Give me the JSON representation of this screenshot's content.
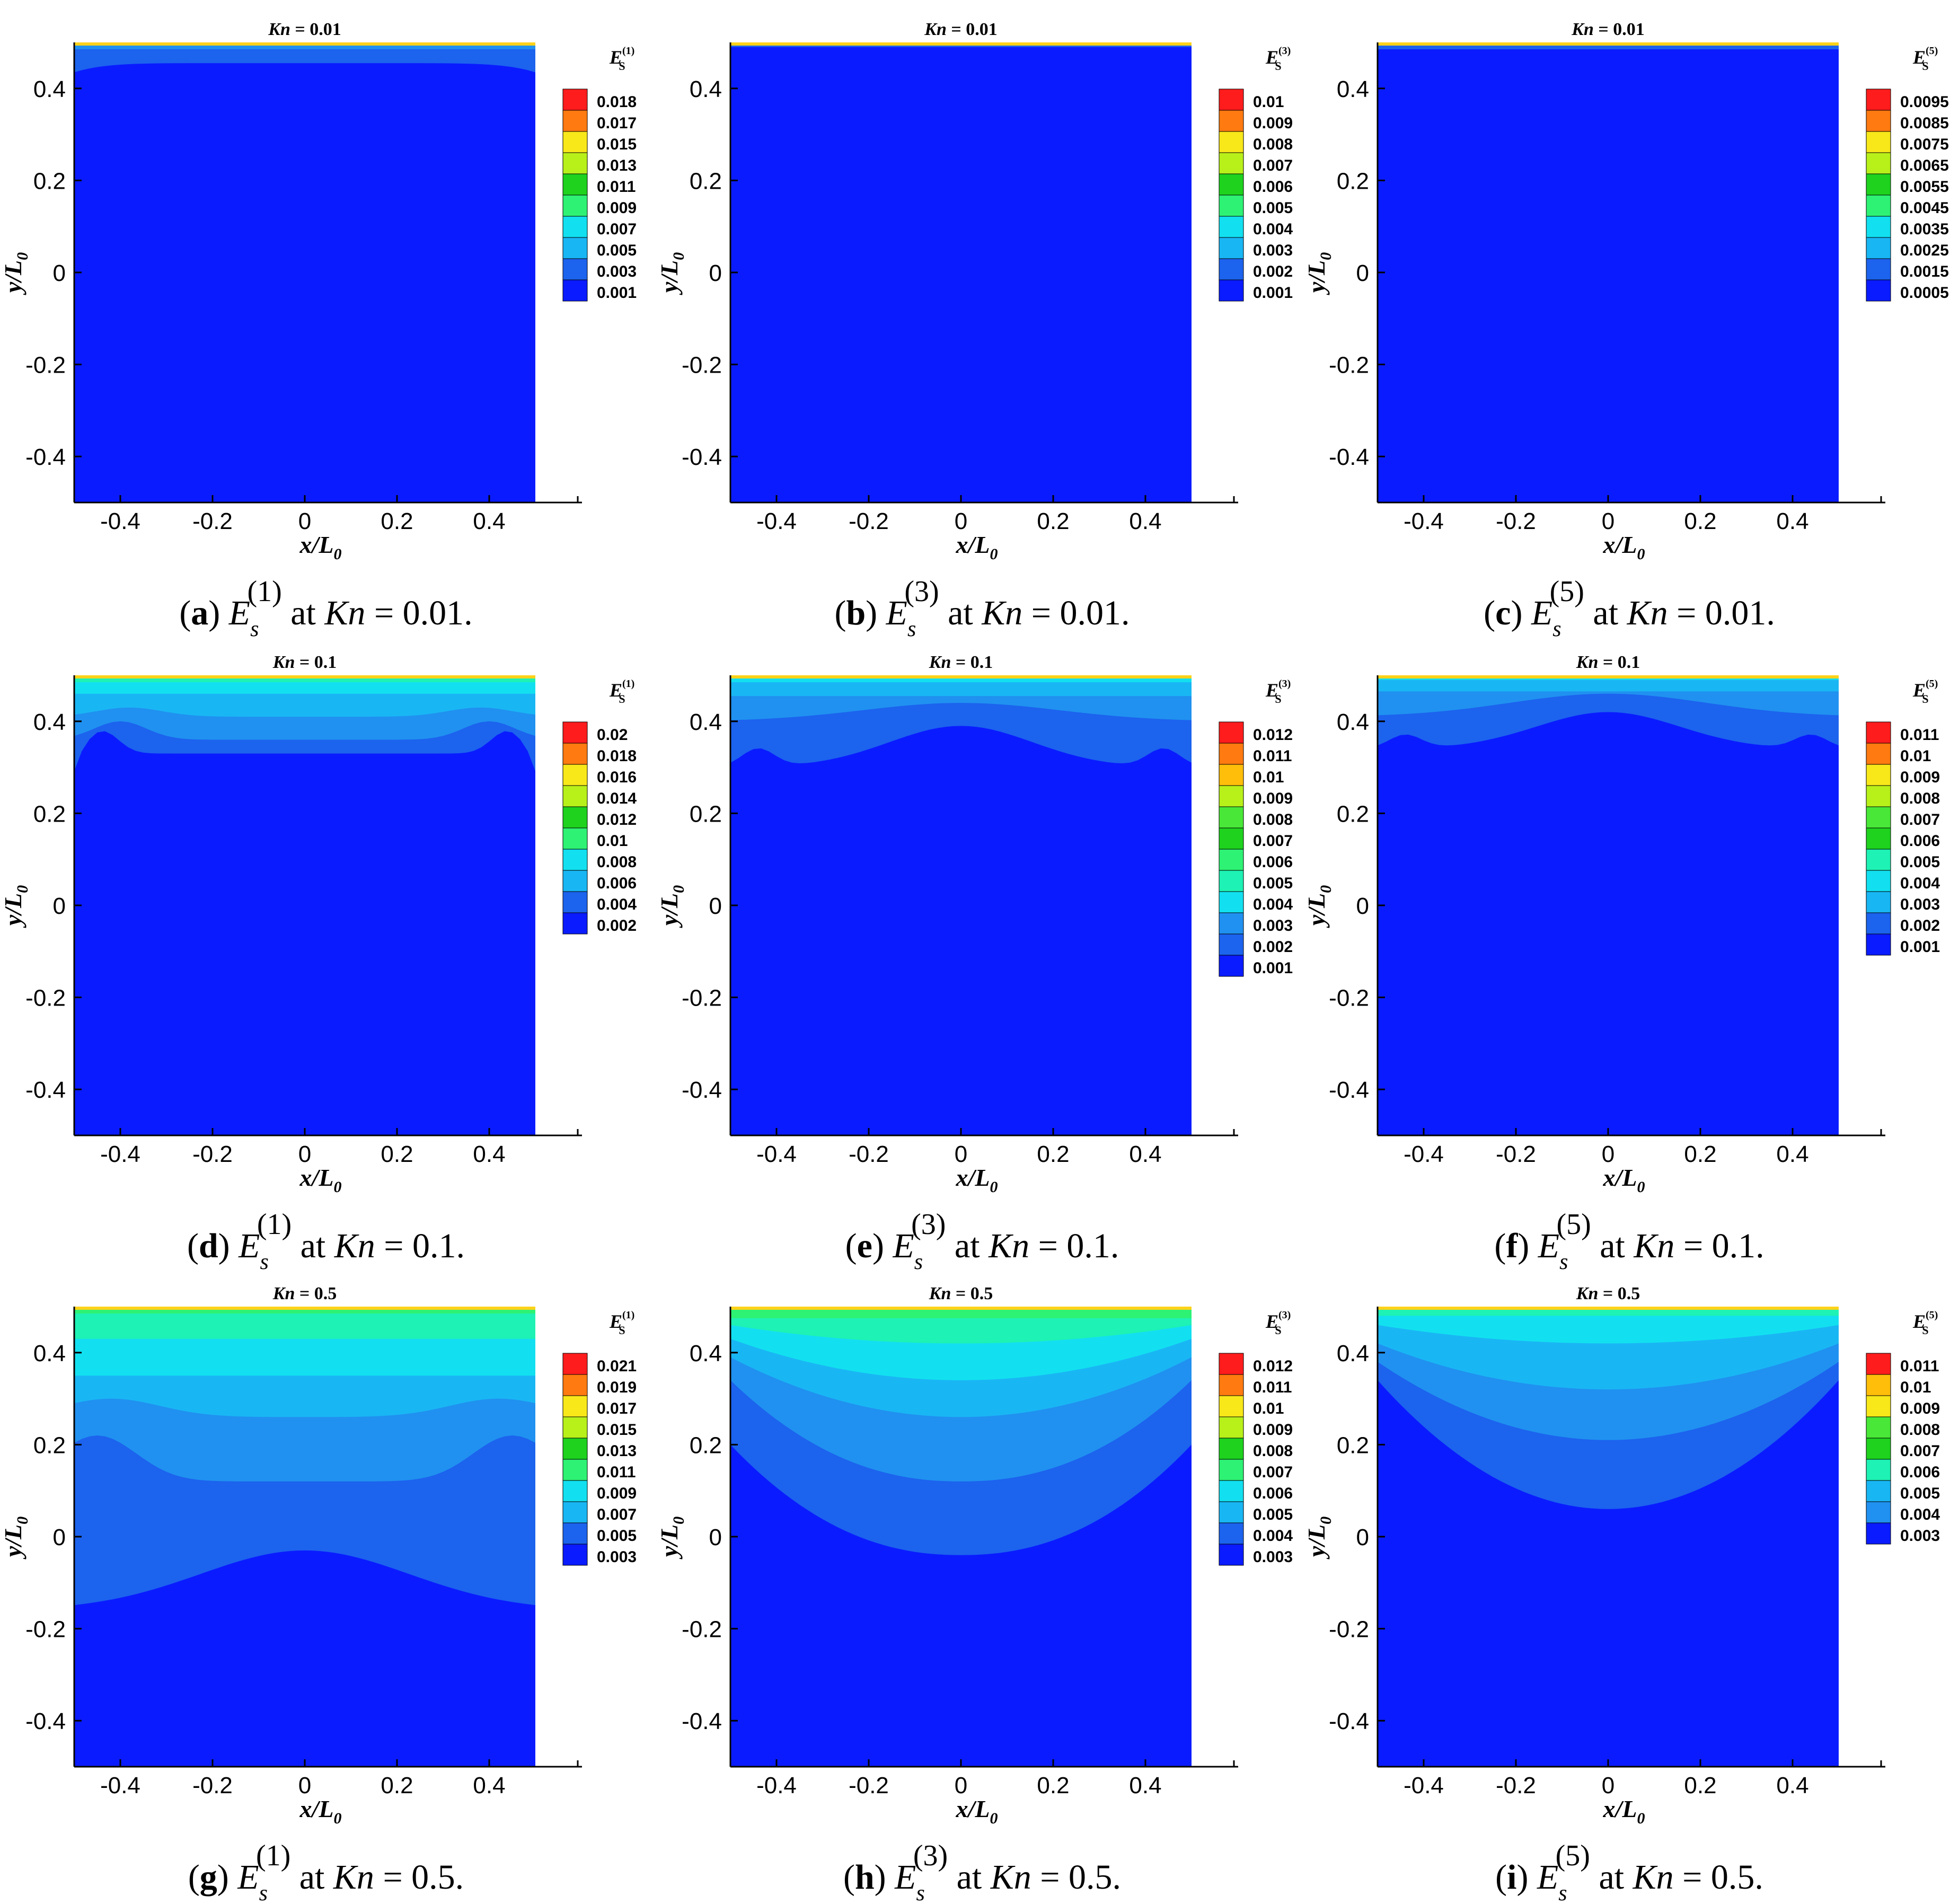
{
  "figure": {
    "axis_labels": {
      "x_main": "x/L",
      "x_sub": "0",
      "y_main": "y/L",
      "y_sub": "0"
    },
    "ticks": [
      "-0.4",
      "-0.2",
      "0",
      "0.2",
      "0.4"
    ],
    "colors": {
      "levels": [
        "#0a1cff",
        "#1c63ee",
        "#2091f0",
        "#19b6f4",
        "#12e0f0",
        "#1ef2b4",
        "#2ef274",
        "#1ed21e",
        "#49e838",
        "#b8f01a",
        "#f8e81a",
        "#ffbe0a",
        "#ff7a10",
        "#ff1c1c"
      ],
      "background": "#ffffff",
      "axis": "#000000"
    }
  },
  "chart_data": [
    {
      "id": "a",
      "type": "contour",
      "kn_title": "Kn = 0.01",
      "legend_title": "E",
      "legend_super": "(1)",
      "levels": [
        "0.018",
        "0.017",
        "0.015",
        "0.013",
        "0.011",
        "0.009",
        "0.007",
        "0.005",
        "0.003",
        "0.001"
      ],
      "caption": {
        "letter": "a",
        "order": "1",
        "kn": "0.01"
      },
      "xlim": [
        -0.5,
        0.5
      ],
      "ylim": [
        -0.5,
        0.5
      ],
      "xlabel": "x/L0",
      "ylabel": "y/L0"
    },
    {
      "id": "b",
      "type": "contour",
      "kn_title": "Kn = 0.01",
      "legend_title": "E",
      "legend_super": "(3)",
      "levels": [
        "0.01",
        "0.009",
        "0.008",
        "0.007",
        "0.006",
        "0.005",
        "0.004",
        "0.003",
        "0.002",
        "0.001"
      ],
      "caption": {
        "letter": "b",
        "order": "3",
        "kn": "0.01"
      },
      "xlim": [
        -0.5,
        0.5
      ],
      "ylim": [
        -0.5,
        0.5
      ],
      "xlabel": "x/L0",
      "ylabel": "y/L0"
    },
    {
      "id": "c",
      "type": "contour",
      "kn_title": "Kn = 0.01",
      "legend_title": "E",
      "legend_super": "(5)",
      "levels": [
        "0.0095",
        "0.0085",
        "0.0075",
        "0.0065",
        "0.0055",
        "0.0045",
        "0.0035",
        "0.0025",
        "0.0015",
        "0.0005"
      ],
      "caption": {
        "letter": "c",
        "order": "5",
        "kn": "0.01"
      },
      "xlim": [
        -0.5,
        0.5
      ],
      "ylim": [
        -0.5,
        0.5
      ],
      "xlabel": "x/L0",
      "ylabel": "y/L0"
    },
    {
      "id": "d",
      "type": "contour",
      "kn_title": "Kn = 0.1",
      "legend_title": "E",
      "legend_super": "(1)",
      "levels": [
        "0.02",
        "0.018",
        "0.016",
        "0.014",
        "0.012",
        "0.01",
        "0.008",
        "0.006",
        "0.004",
        "0.002"
      ],
      "caption": {
        "letter": "d",
        "order": "1",
        "kn": "0.1"
      },
      "xlim": [
        -0.5,
        0.5
      ],
      "ylim": [
        -0.5,
        0.5
      ],
      "xlabel": "x/L0",
      "ylabel": "y/L0"
    },
    {
      "id": "e",
      "type": "contour",
      "kn_title": "Kn = 0.1",
      "legend_title": "E",
      "legend_super": "(3)",
      "levels": [
        "0.012",
        "0.011",
        "0.01",
        "0.009",
        "0.008",
        "0.007",
        "0.006",
        "0.005",
        "0.004",
        "0.003",
        "0.002",
        "0.001"
      ],
      "caption": {
        "letter": "e",
        "order": "3",
        "kn": "0.1"
      },
      "xlim": [
        -0.5,
        0.5
      ],
      "ylim": [
        -0.5,
        0.5
      ],
      "xlabel": "x/L0",
      "ylabel": "y/L0"
    },
    {
      "id": "f",
      "type": "contour",
      "kn_title": "Kn = 0.1",
      "legend_title": "E",
      "legend_super": "(5)",
      "levels": [
        "0.011",
        "0.01",
        "0.009",
        "0.008",
        "0.007",
        "0.006",
        "0.005",
        "0.004",
        "0.003",
        "0.002",
        "0.001"
      ],
      "caption": {
        "letter": "f",
        "order": "5",
        "kn": "0.1"
      },
      "xlim": [
        -0.5,
        0.5
      ],
      "ylim": [
        -0.5,
        0.5
      ],
      "xlabel": "x/L0",
      "ylabel": "y/L0"
    },
    {
      "id": "g",
      "type": "contour",
      "kn_title": "Kn = 0.5",
      "legend_title": "E",
      "legend_super": "(1)",
      "levels": [
        "0.021",
        "0.019",
        "0.017",
        "0.015",
        "0.013",
        "0.011",
        "0.009",
        "0.007",
        "0.005",
        "0.003"
      ],
      "caption": {
        "letter": "g",
        "order": "1",
        "kn": "0.5"
      },
      "xlim": [
        -0.5,
        0.5
      ],
      "ylim": [
        -0.5,
        0.5
      ],
      "xlabel": "x/L0",
      "ylabel": "y/L0"
    },
    {
      "id": "h",
      "type": "contour",
      "kn_title": "Kn = 0.5",
      "legend_title": "E",
      "legend_super": "(3)",
      "levels": [
        "0.012",
        "0.011",
        "0.01",
        "0.009",
        "0.008",
        "0.007",
        "0.006",
        "0.005",
        "0.004",
        "0.003"
      ],
      "caption": {
        "letter": "h",
        "order": "3",
        "kn": "0.5"
      },
      "xlim": [
        -0.5,
        0.5
      ],
      "ylim": [
        -0.5,
        0.5
      ],
      "xlabel": "x/L0",
      "ylabel": "y/L0"
    },
    {
      "id": "i",
      "type": "contour",
      "kn_title": "Kn = 0.5",
      "legend_title": "E",
      "legend_super": "(5)",
      "levels": [
        "0.011",
        "0.01",
        "0.009",
        "0.008",
        "0.007",
        "0.006",
        "0.005",
        "0.004",
        "0.003"
      ],
      "caption": {
        "letter": "i",
        "order": "5",
        "kn": "0.5"
      },
      "xlim": [
        -0.5,
        0.5
      ],
      "ylim": [
        -0.5,
        0.5
      ],
      "xlabel": "x/L0",
      "ylabel": "y/L0"
    }
  ]
}
